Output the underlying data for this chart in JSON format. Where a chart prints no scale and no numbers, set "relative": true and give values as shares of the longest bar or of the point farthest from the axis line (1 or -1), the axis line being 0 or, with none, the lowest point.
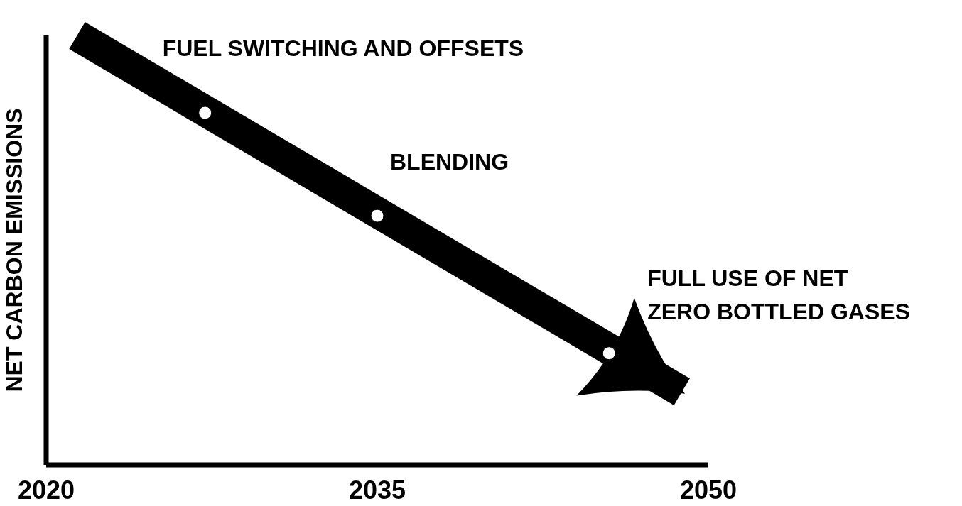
{
  "chart_data": {
    "type": "line",
    "relative": true,
    "ylabel": "NET CARBON EMISSIONS",
    "xlim": [
      2020,
      2050
    ],
    "xticks": [
      2020,
      2035,
      2050
    ],
    "series": [
      {
        "color": "#000000",
        "x": [
          2021.4,
          2048.8
        ],
        "values": [
          1,
          0.17
        ]
      },
      {
        "type": "scatter",
        "color": "#ffffff",
        "x": [
          2027.2,
          2035,
          2045.5
        ],
        "values": [
          0.82,
          0.58,
          0.26
        ]
      }
    ],
    "annotations": [
      {
        "text": "FUEL SWITCHING AND OFFSETS",
        "x": 2027.2,
        "y": 0.82
      },
      {
        "text": "BLENDING",
        "x": 2035,
        "y": 0.58
      },
      {
        "text": "FULL USE OF NET\nZERO BOTTLED GASES",
        "x": 2045.5,
        "y": 0.26
      }
    ]
  }
}
